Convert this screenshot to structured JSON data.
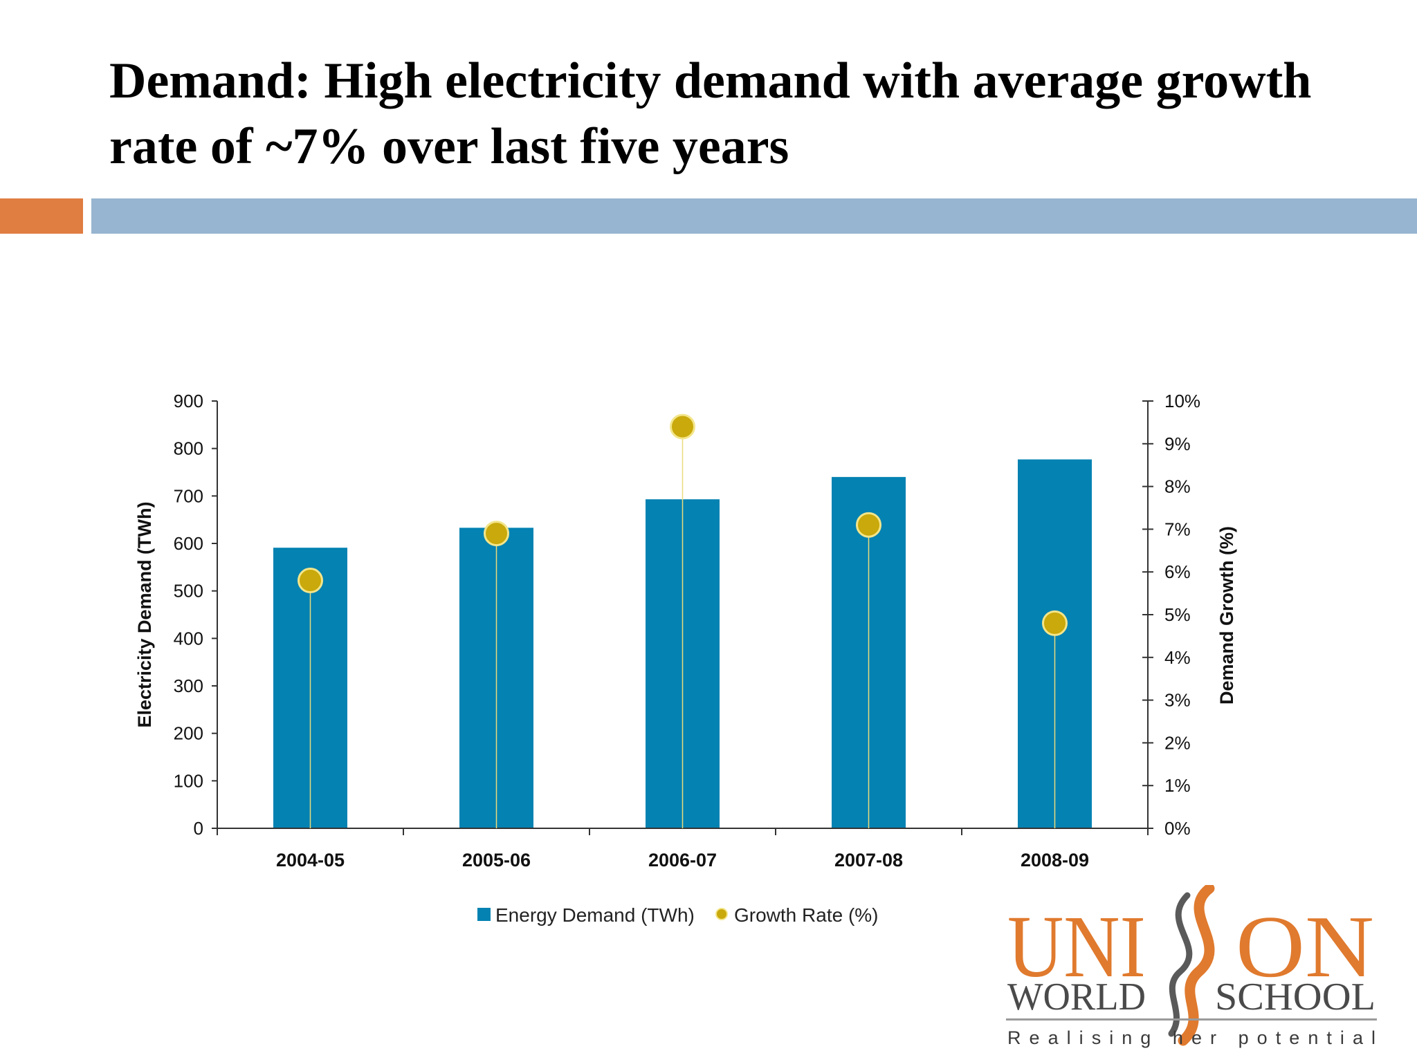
{
  "title": "Demand: High electricity demand with average growth rate of ~7% over last five years",
  "colors": {
    "bar": "#0482b2",
    "marker": "#c9a90b",
    "accent_orange": "#e07d41",
    "accent_blue": "#97b5d0",
    "logo_orange": "#e07a2e",
    "logo_gray": "#4a4a4a"
  },
  "chart_data": {
    "type": "bar",
    "categories": [
      "2004-05",
      "2005-06",
      "2006-07",
      "2007-08",
      "2008-09"
    ],
    "series": [
      {
        "name": "Energy Demand (TWh)",
        "type": "bar",
        "axis": "left",
        "values": [
          591,
          633,
          693,
          740,
          777
        ]
      },
      {
        "name": "Growth Rate (%)",
        "type": "scatter",
        "axis": "right",
        "values": [
          5.8,
          6.9,
          9.4,
          7.1,
          4.8
        ]
      }
    ],
    "ylabel": "Electricity Demand (TWh)",
    "y2label": "Demand Growth (%)",
    "ylim": [
      0,
      900
    ],
    "y2lim": [
      0,
      10
    ],
    "yticks": [
      "0",
      "100",
      "200",
      "300",
      "400",
      "500",
      "600",
      "700",
      "800",
      "900"
    ],
    "y2ticks": [
      "0%",
      "1%",
      "2%",
      "3%",
      "4%",
      "5%",
      "6%",
      "7%",
      "8%",
      "9%",
      "10%"
    ],
    "grid": false,
    "legend": "bottom"
  },
  "logo": {
    "line1_left": "UNI",
    "line1_right": "ON",
    "line2_left": "WORLD",
    "line2_right": "SCHOOL",
    "tagline": "Realising her potential"
  }
}
